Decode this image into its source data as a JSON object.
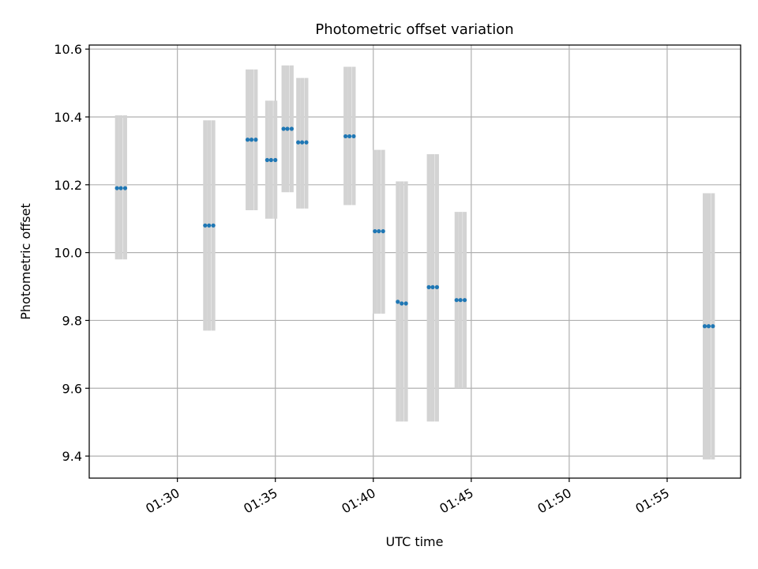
{
  "chart_data": {
    "type": "scatter",
    "title": "Photometric offset variation",
    "xlabel": "UTC time",
    "ylabel": "Photometric offset",
    "x_unit": "UTC time",
    "xlim": [
      "01:25:30",
      "01:58:45"
    ],
    "ylim": [
      9.335,
      10.612
    ],
    "x_ticks": [
      "01:30",
      "01:35",
      "01:40",
      "01:45",
      "01:50",
      "01:55"
    ],
    "y_ticks": [
      "9.4",
      "9.6",
      "9.8",
      "10.0",
      "10.2",
      "10.4",
      "10.6"
    ],
    "grid": true,
    "colors": {
      "points": "#1f77b4",
      "errorbars": "#d3d3d3",
      "grid": "#b0b0b0"
    },
    "series": [
      {
        "groups": [
          {
            "times": [
              "01:26:55",
              "01:27:07",
              "01:27:20"
            ],
            "values": [
              10.19,
              10.19,
              10.19
            ],
            "err_low": 9.98,
            "err_high": 10.405
          },
          {
            "times": [
              "01:31:25",
              "01:31:37",
              "01:31:50"
            ],
            "values": [
              10.08,
              10.08,
              10.08
            ],
            "err_low": 9.77,
            "err_high": 10.39
          },
          {
            "times": [
              "01:33:35",
              "01:33:47",
              "01:34:00"
            ],
            "values": [
              10.333,
              10.333,
              10.333
            ],
            "err_low": 10.125,
            "err_high": 10.54
          },
          {
            "times": [
              "01:34:35",
              "01:34:47",
              "01:35:00"
            ],
            "values": [
              10.273,
              10.273,
              10.273
            ],
            "err_low": 10.1,
            "err_high": 10.448
          },
          {
            "times": [
              "01:35:25",
              "01:35:37",
              "01:35:50"
            ],
            "values": [
              10.365,
              10.365,
              10.365
            ],
            "err_low": 10.178,
            "err_high": 10.552
          },
          {
            "times": [
              "01:36:10",
              "01:36:22",
              "01:36:35"
            ],
            "values": [
              10.325,
              10.325,
              10.325
            ],
            "err_low": 10.13,
            "err_high": 10.515
          },
          {
            "times": [
              "01:38:35",
              "01:38:47",
              "01:39:00"
            ],
            "values": [
              10.343,
              10.343,
              10.343
            ],
            "err_low": 10.14,
            "err_high": 10.548
          },
          {
            "times": [
              "01:40:05",
              "01:40:17",
              "01:40:30"
            ],
            "values": [
              10.063,
              10.063,
              10.063
            ],
            "err_low": 9.82,
            "err_high": 10.303
          },
          {
            "times": [
              "01:41:15",
              "01:41:27",
              "01:41:40"
            ],
            "values": [
              9.855,
              9.85,
              9.85
            ],
            "err_low": 9.502,
            "err_high": 10.21
          },
          {
            "times": [
              "01:42:50",
              "01:43:02",
              "01:43:15"
            ],
            "values": [
              9.898,
              9.898,
              9.898
            ],
            "err_low": 9.502,
            "err_high": 10.29
          },
          {
            "times": [
              "01:44:15",
              "01:44:27",
              "01:44:40"
            ],
            "values": [
              9.86,
              9.86,
              9.86
            ],
            "err_low": 9.6,
            "err_high": 10.12
          },
          {
            "times": [
              "01:56:55",
              "01:57:07",
              "01:57:20"
            ],
            "values": [
              9.783,
              9.783,
              9.783
            ],
            "err_low": 9.39,
            "err_high": 10.175
          }
        ]
      }
    ]
  }
}
